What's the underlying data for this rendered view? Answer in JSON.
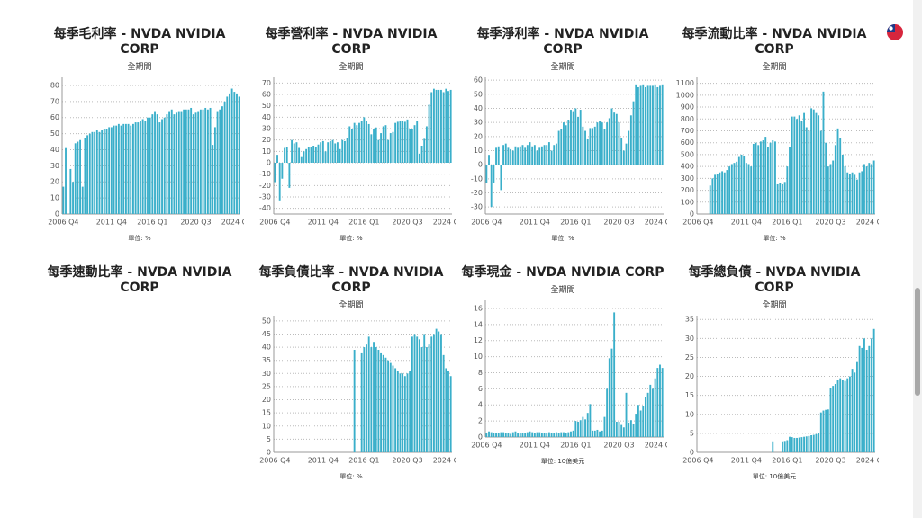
{
  "chart_data": [
    {
      "type": "bar",
      "title": "每季毛利率 - NVDA NVIDIA CORP",
      "subtitle": "全期間",
      "unit": "單位: %",
      "color": "#3aafca",
      "grid": true,
      "categories": [
        "2006 Q4",
        null,
        null,
        null,
        null,
        null,
        null,
        null,
        null,
        null,
        null,
        null,
        null,
        null,
        null,
        null,
        null,
        null,
        null,
        null,
        "2011 Q4",
        null,
        null,
        null,
        null,
        null,
        null,
        null,
        null,
        null,
        null,
        null,
        null,
        null,
        null,
        null,
        null,
        "2016 Q1",
        null,
        null,
        null,
        null,
        null,
        null,
        null,
        null,
        null,
        null,
        null,
        null,
        null,
        null,
        null,
        null,
        null,
        "2020 Q3",
        null,
        null,
        null,
        null,
        null,
        null,
        null,
        null,
        null,
        null,
        null,
        null,
        null,
        null,
        null,
        "2024 Q",
        null,
        null
      ],
      "values": [
        17,
        41,
        0,
        28,
        20,
        44,
        45,
        46,
        17,
        47,
        49,
        50,
        51,
        51,
        52,
        51,
        52,
        53,
        53,
        54,
        54,
        55,
        55,
        56,
        55,
        56,
        56,
        56,
        55,
        56,
        57,
        57,
        58,
        59,
        58,
        60,
        60,
        62,
        64,
        62,
        57,
        59,
        60,
        62,
        64,
        65,
        62,
        63,
        64,
        64,
        65,
        65,
        65,
        66,
        62,
        63,
        64,
        65,
        65,
        66,
        65,
        66,
        43,
        54,
        64,
        65,
        67,
        70,
        73,
        75,
        78,
        76,
        75,
        73
      ],
      "ylim": [
        0,
        85
      ],
      "yticks": [
        0,
        10,
        20,
        30,
        40,
        50,
        60,
        70,
        80
      ]
    },
    {
      "type": "bar",
      "title": "每季營利率 - NVDA NVIDIA CORP",
      "subtitle": "全期間",
      "unit": "單位: %",
      "color": "#3aafca",
      "grid": true,
      "categories": [
        "2006 Q4",
        null,
        null,
        null,
        null,
        null,
        null,
        null,
        null,
        null,
        null,
        null,
        null,
        null,
        null,
        null,
        null,
        null,
        null,
        null,
        "2011 Q4",
        null,
        null,
        null,
        null,
        null,
        null,
        null,
        null,
        null,
        null,
        null,
        null,
        null,
        null,
        null,
        null,
        "2016 Q1",
        null,
        null,
        null,
        null,
        null,
        null,
        null,
        null,
        null,
        null,
        null,
        null,
        null,
        null,
        null,
        null,
        null,
        "2020 Q3",
        null,
        null,
        null,
        null,
        null,
        null,
        null,
        null,
        null,
        null,
        null,
        null,
        null,
        null,
        null,
        "2024 Q",
        null,
        null
      ],
      "values": [
        -17,
        7,
        -33,
        -14,
        13,
        14,
        -22,
        20,
        17,
        18,
        13,
        5,
        10,
        12,
        14,
        14,
        15,
        14,
        16,
        18,
        19,
        10,
        18,
        19,
        20,
        17,
        18,
        12,
        20,
        19,
        22,
        32,
        30,
        35,
        33,
        35,
        37,
        40,
        37,
        34,
        25,
        30,
        31,
        20,
        26,
        32,
        33,
        20,
        26,
        27,
        35,
        36,
        37,
        37,
        36,
        38,
        30,
        30,
        33,
        37,
        8,
        15,
        21,
        32,
        51,
        62,
        65,
        64,
        64,
        64,
        62,
        65,
        63,
        64
      ],
      "ylim": [
        -45,
        75
      ],
      "yticks": [
        -40,
        -30,
        -20,
        -10,
        0,
        10,
        20,
        30,
        40,
        50,
        60,
        70
      ]
    },
    {
      "type": "bar",
      "title": "每季淨利率 - NVDA NVIDIA CORP",
      "subtitle": "全期間",
      "unit": "單位: %",
      "color": "#3aafca",
      "grid": true,
      "categories": [
        "2006 Q4",
        null,
        null,
        null,
        null,
        null,
        null,
        null,
        null,
        null,
        null,
        null,
        null,
        null,
        null,
        null,
        null,
        null,
        null,
        null,
        "2011 Q4",
        null,
        null,
        null,
        null,
        null,
        null,
        null,
        null,
        null,
        null,
        null,
        null,
        null,
        null,
        null,
        null,
        "2016 Q1",
        null,
        null,
        null,
        null,
        null,
        null,
        null,
        null,
        null,
        null,
        null,
        null,
        null,
        null,
        null,
        null,
        null,
        "2020 Q3",
        null,
        null,
        null,
        null,
        null,
        null,
        null,
        null,
        null,
        null,
        null,
        null,
        null,
        null,
        null,
        "2024 Q",
        null,
        null
      ],
      "values": [
        -13,
        7,
        -30,
        -13,
        12,
        13,
        -18,
        14,
        15,
        12,
        11,
        10,
        13,
        12,
        13,
        14,
        12,
        14,
        16,
        13,
        14,
        10,
        12,
        13,
        14,
        14,
        16,
        10,
        14,
        15,
        24,
        25,
        30,
        28,
        32,
        39,
        38,
        40,
        34,
        39,
        27,
        24,
        18,
        26,
        26,
        27,
        30,
        31,
        30,
        25,
        30,
        33,
        40,
        37,
        36,
        30,
        19,
        10,
        15,
        24,
        35,
        45,
        57,
        55,
        56,
        57,
        55,
        56,
        56,
        56,
        57,
        55,
        56,
        57
      ],
      "ylim": [
        -35,
        62
      ],
      "yticks": [
        -30,
        -20,
        -10,
        0,
        10,
        20,
        30,
        40,
        50,
        60
      ]
    },
    {
      "type": "bar",
      "title": "每季流動比率 - NVDA NVIDIA CORP",
      "subtitle": "全期間",
      "unit": "單位: %",
      "color": "#3aafca",
      "grid": true,
      "categories": [
        "2006 Q4",
        null,
        null,
        null,
        null,
        null,
        null,
        null,
        null,
        null,
        null,
        null,
        null,
        null,
        null,
        null,
        null,
        null,
        null,
        null,
        "2011 Q4",
        null,
        null,
        null,
        null,
        null,
        null,
        null,
        null,
        null,
        null,
        null,
        null,
        null,
        null,
        null,
        null,
        "2016 Q1",
        null,
        null,
        null,
        null,
        null,
        null,
        null,
        null,
        null,
        null,
        null,
        null,
        null,
        null,
        null,
        null,
        null,
        "2020 Q3",
        null,
        null,
        null,
        null,
        null,
        null,
        null,
        null,
        null,
        null,
        null,
        null,
        null,
        null,
        null,
        "2024 Q",
        null,
        null
      ],
      "values": [
        0,
        0,
        0,
        0,
        0,
        240,
        300,
        330,
        340,
        350,
        360,
        350,
        370,
        400,
        420,
        430,
        440,
        480,
        500,
        490,
        430,
        420,
        400,
        590,
        600,
        580,
        610,
        620,
        650,
        560,
        600,
        620,
        610,
        250,
        260,
        250,
        270,
        400,
        560,
        820,
        820,
        800,
        830,
        780,
        850,
        730,
        700,
        890,
        880,
        850,
        830,
        700,
        1030,
        600,
        400,
        420,
        450,
        580,
        720,
        640,
        500,
        400,
        350,
        340,
        350,
        330,
        290,
        350,
        360,
        420,
        400,
        430,
        420,
        450
      ],
      "ylim": [
        0,
        1150
      ],
      "yticks": [
        0,
        100,
        200,
        300,
        400,
        500,
        600,
        700,
        800,
        900,
        1000,
        1100
      ]
    },
    {
      "type": "bar",
      "title": "每季速動比率 - NVDA NVIDIA CORP"
    },
    {
      "type": "bar",
      "title": "每季負債比率 - NVDA NVIDIA CORP",
      "subtitle": "全期間",
      "unit": "單位: %",
      "color": "#3aafca",
      "grid": true,
      "categories": [
        "2006 Q4",
        null,
        null,
        null,
        null,
        null,
        null,
        null,
        null,
        null,
        null,
        null,
        null,
        null,
        null,
        null,
        null,
        null,
        null,
        null,
        "2011 Q4",
        null,
        null,
        null,
        null,
        null,
        null,
        null,
        null,
        null,
        null,
        null,
        null,
        null,
        null,
        null,
        null,
        "2016 Q1",
        null,
        null,
        null,
        null,
        null,
        null,
        null,
        null,
        null,
        null,
        null,
        null,
        null,
        null,
        null,
        null,
        null,
        "2020 Q3",
        null,
        null,
        null,
        null,
        null,
        null,
        null,
        null,
        null,
        null,
        null,
        null,
        null,
        null,
        null,
        "2024 Q",
        null,
        null
      ],
      "values": [
        0,
        0,
        0,
        0,
        0,
        0,
        0,
        0,
        0,
        0,
        0,
        0,
        0,
        0,
        0,
        0,
        0,
        0,
        0,
        0,
        0,
        0,
        0,
        0,
        0,
        0,
        0,
        0,
        0,
        0,
        0,
        0,
        0,
        39,
        0,
        0,
        38,
        40,
        41,
        44,
        40,
        42,
        40,
        39,
        38,
        37,
        36,
        35,
        34,
        33,
        32,
        31,
        30,
        30,
        29,
        30,
        31,
        44,
        45,
        44,
        43,
        40,
        45,
        40,
        41,
        44,
        45,
        47,
        46,
        45,
        37,
        32,
        31,
        29
      ],
      "ylim": [
        0,
        52
      ],
      "yticks": [
        0,
        5,
        10,
        15,
        20,
        25,
        30,
        35,
        40,
        45,
        50
      ]
    },
    {
      "type": "bar",
      "title": "每季現金 - NVDA NVIDIA CORP",
      "subtitle": "全期間",
      "unit": "單位: 10億美元",
      "color": "#3aafca",
      "grid": true,
      "categories": [
        "2006 Q4",
        null,
        null,
        null,
        null,
        null,
        null,
        null,
        null,
        null,
        null,
        null,
        null,
        null,
        null,
        null,
        null,
        null,
        null,
        null,
        "2011 Q4",
        null,
        null,
        null,
        null,
        null,
        null,
        null,
        null,
        null,
        null,
        null,
        null,
        null,
        null,
        null,
        null,
        "2016 Q1",
        null,
        null,
        null,
        null,
        null,
        null,
        null,
        null,
        null,
        null,
        null,
        null,
        null,
        null,
        null,
        null,
        null,
        "2020 Q3",
        null,
        null,
        null,
        null,
        null,
        null,
        null,
        null,
        null,
        null,
        null,
        null,
        null,
        null,
        null,
        "2024 Q",
        null,
        null
      ],
      "values": [
        0.5,
        0.7,
        0.6,
        0.5,
        0.5,
        0.5,
        0.6,
        0.6,
        0.5,
        0.5,
        0.4,
        0.6,
        0.7,
        0.5,
        0.5,
        0.5,
        0.5,
        0.6,
        0.7,
        0.6,
        0.5,
        0.6,
        0.6,
        0.5,
        0.5,
        0.5,
        0.6,
        0.5,
        0.5,
        0.6,
        0.5,
        0.6,
        0.6,
        0.5,
        0.6,
        0.7,
        0.8,
        2,
        1.9,
        2.1,
        2.5,
        2.2,
        3,
        4.1,
        0.8,
        0.8,
        0.9,
        0.7,
        0.8,
        2.5,
        6,
        9.8,
        11,
        15.5,
        1.9,
        1.9,
        1.5,
        1.2,
        5.5,
        1.8,
        2.1,
        1.6,
        2.9,
        4,
        3.3,
        3.8,
        5,
        5.5,
        6.5,
        6,
        7.3,
        8.6,
        9,
        8.6
      ],
      "ylim": [
        0,
        17
      ],
      "yticks": [
        0,
        2,
        4,
        6,
        8,
        10,
        12,
        14,
        16
      ]
    },
    {
      "type": "bar",
      "title": "每季總負債 - NVDA NVIDIA CORP",
      "subtitle": "全期間",
      "unit": "單位: 10億美元",
      "color": "#3aafca",
      "grid": true,
      "categories": [
        "2006 Q4",
        null,
        null,
        null,
        null,
        null,
        null,
        null,
        null,
        null,
        null,
        null,
        null,
        null,
        null,
        null,
        null,
        null,
        null,
        null,
        "2011 Q4",
        null,
        null,
        null,
        null,
        null,
        null,
        null,
        null,
        null,
        null,
        null,
        null,
        null,
        null,
        null,
        null,
        "2016 Q1",
        null,
        null,
        null,
        null,
        null,
        null,
        null,
        null,
        null,
        null,
        null,
        null,
        null,
        null,
        null,
        null,
        null,
        "2020 Q3",
        null,
        null,
        null,
        null,
        null,
        null,
        null,
        null,
        null,
        null,
        null,
        null,
        null,
        null,
        null,
        "2024 Q",
        null,
        null
      ],
      "values": [
        0,
        0,
        0,
        0,
        0,
        0,
        0,
        0,
        0,
        0,
        0,
        0,
        0,
        0,
        0,
        0,
        0,
        0,
        0,
        0,
        0,
        0,
        0,
        0,
        0,
        0,
        0,
        0,
        0,
        0,
        0,
        2.9,
        0,
        0,
        0,
        2.9,
        3,
        3.2,
        4.1,
        4,
        3.8,
        3.8,
        3.9,
        4,
        4.1,
        4.2,
        4.3,
        4.5,
        4.6,
        4.8,
        5,
        10.5,
        11,
        11.2,
        11.3,
        17,
        17.5,
        18,
        19,
        19.5,
        19,
        18.8,
        19.5,
        20,
        22,
        21,
        24,
        28,
        27.5,
        30,
        27,
        28,
        30,
        32.5
      ],
      "ylim": [
        0,
        36
      ],
      "yticks": [
        0,
        5,
        10,
        15,
        20,
        25,
        30,
        35
      ]
    }
  ]
}
